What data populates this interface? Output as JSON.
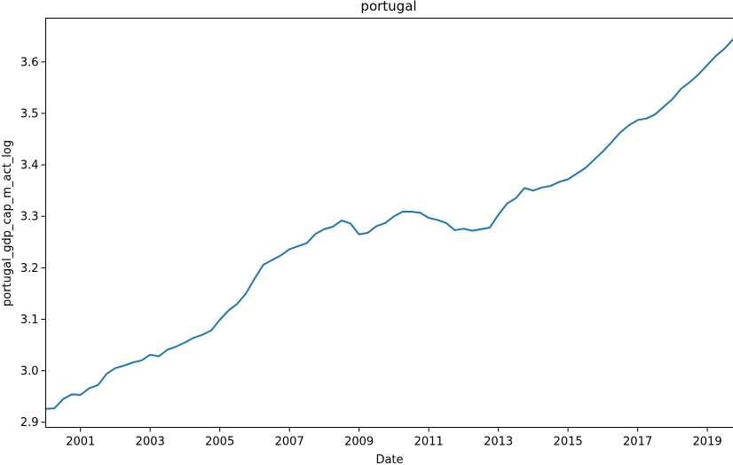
{
  "chart_data": {
    "type": "line",
    "title": "portugal",
    "xlabel": "Date",
    "ylabel": "portugal_gdp_cap_m_act_log",
    "xlim": [
      "2000-01",
      "2019-10"
    ],
    "ylim": [
      2.89,
      3.685
    ],
    "x_ticks": [
      "2001",
      "2003",
      "2005",
      "2007",
      "2009",
      "2011",
      "2013",
      "2015",
      "2017",
      "2019"
    ],
    "y_ticks": [
      "2.9",
      "3.0",
      "3.1",
      "3.2",
      "3.3",
      "3.4",
      "3.5",
      "3.6"
    ],
    "grid": false,
    "series": [
      {
        "color": "#1f77b4",
        "x": [
          "2000-01",
          "2000-04",
          "2000-07",
          "2000-10",
          "2001-01",
          "2001-04",
          "2001-07",
          "2001-10",
          "2002-01",
          "2002-04",
          "2002-07",
          "2002-10",
          "2003-01",
          "2003-04",
          "2003-07",
          "2003-10",
          "2004-01",
          "2004-04",
          "2004-07",
          "2004-10",
          "2005-01",
          "2005-04",
          "2005-07",
          "2005-10",
          "2006-01",
          "2006-04",
          "2006-07",
          "2006-10",
          "2007-01",
          "2007-04",
          "2007-07",
          "2007-10",
          "2008-01",
          "2008-04",
          "2008-07",
          "2008-10",
          "2009-01",
          "2009-04",
          "2009-07",
          "2009-10",
          "2010-01",
          "2010-04",
          "2010-07",
          "2010-10",
          "2011-01",
          "2011-04",
          "2011-07",
          "2011-10",
          "2012-01",
          "2012-04",
          "2012-07",
          "2012-10",
          "2013-01",
          "2013-04",
          "2013-07",
          "2013-10",
          "2014-01",
          "2014-04",
          "2014-07",
          "2014-10",
          "2015-01",
          "2015-04",
          "2015-07",
          "2015-10",
          "2016-01",
          "2016-04",
          "2016-07",
          "2016-10",
          "2017-01",
          "2017-04",
          "2017-07",
          "2017-10",
          "2018-01",
          "2018-04",
          "2018-07",
          "2018-10",
          "2019-01",
          "2019-04",
          "2019-07",
          "2019-10"
        ],
        "values": [
          2.926,
          2.927,
          2.945,
          2.954,
          2.953,
          2.966,
          2.972,
          2.994,
          3.005,
          3.01,
          3.016,
          3.02,
          3.031,
          3.028,
          3.041,
          3.047,
          3.055,
          3.064,
          3.07,
          3.078,
          3.099,
          3.117,
          3.13,
          3.15,
          3.179,
          3.206,
          3.215,
          3.224,
          3.236,
          3.242,
          3.248,
          3.266,
          3.275,
          3.28,
          3.292,
          3.286,
          3.265,
          3.268,
          3.281,
          3.287,
          3.3,
          3.309,
          3.309,
          3.307,
          3.297,
          3.293,
          3.287,
          3.273,
          3.276,
          3.272,
          3.275,
          3.278,
          3.303,
          3.325,
          3.335,
          3.355,
          3.35,
          3.356,
          3.359,
          3.367,
          3.372,
          3.383,
          3.394,
          3.41,
          3.426,
          3.444,
          3.463,
          3.477,
          3.487,
          3.49,
          3.498,
          3.513,
          3.528,
          3.548,
          3.561,
          3.576,
          3.594,
          3.612,
          3.626,
          3.645
        ]
      }
    ]
  }
}
